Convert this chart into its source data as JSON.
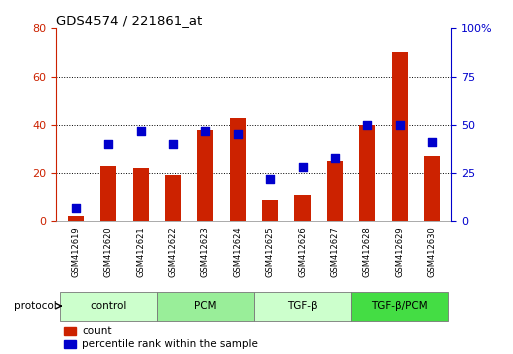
{
  "title": "GDS4574 / 221861_at",
  "samples": [
    "GSM412619",
    "GSM412620",
    "GSM412621",
    "GSM412622",
    "GSM412623",
    "GSM412624",
    "GSM412625",
    "GSM412626",
    "GSM412627",
    "GSM412628",
    "GSM412629",
    "GSM412630"
  ],
  "counts": [
    2,
    23,
    22,
    19,
    38,
    43,
    9,
    11,
    25,
    40,
    70,
    27
  ],
  "percentiles": [
    7,
    40,
    47,
    40,
    47,
    45,
    22,
    28,
    33,
    50,
    50,
    41
  ],
  "groups": [
    {
      "label": "control",
      "start": 0,
      "end": 3,
      "color": "#ccffcc"
    },
    {
      "label": "PCM",
      "start": 3,
      "end": 6,
      "color": "#99ee99"
    },
    {
      "label": "TGF-β",
      "start": 6,
      "end": 9,
      "color": "#ccffcc"
    },
    {
      "label": "TGF-β/PCM",
      "start": 9,
      "end": 12,
      "color": "#44dd44"
    }
  ],
  "bar_color": "#cc2200",
  "dot_color": "#0000cc",
  "left_ylim": [
    0,
    80
  ],
  "right_ylim": [
    0,
    100
  ],
  "left_yticks": [
    0,
    20,
    40,
    60,
    80
  ],
  "right_yticks": [
    0,
    25,
    50,
    75,
    100
  ],
  "right_yticklabels": [
    "0",
    "25",
    "50",
    "75",
    "100%"
  ],
  "bg_color": "#ffffff",
  "tick_label_area_color": "#bbbbbb",
  "bar_width": 0.5,
  "dot_size": 30
}
